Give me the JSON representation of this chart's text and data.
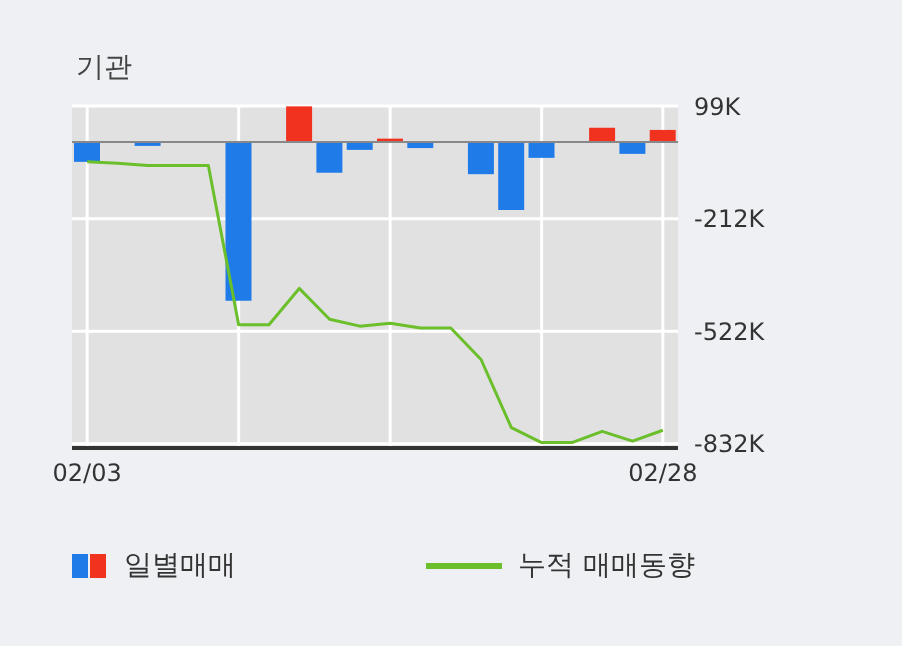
{
  "chart_data": {
    "type": "bar",
    "title": "기관",
    "categories": [
      "02/03",
      null,
      null,
      null,
      null,
      null,
      null,
      null,
      null,
      null,
      null,
      null,
      null,
      null,
      null,
      null,
      null,
      null,
      null,
      "02/28"
    ],
    "series": [
      {
        "name": "일별매매",
        "colors": [
          "#1e7be8",
          "#1e7be8",
          "#1e7be8",
          "#1e7be8",
          "#1e7be8",
          "#1e7be8",
          "#1e7be8",
          "#f0321e",
          "#1e7be8",
          "#1e7be8",
          "#f0321e",
          "#1e7be8",
          "#1e7be8",
          "#1e7be8",
          "#1e7be8",
          "#1e7be8",
          "#1e7be8",
          "#f0321e",
          "#1e7be8",
          "#f0321e"
        ],
        "values": [
          -55000,
          0,
          -11000,
          0,
          0,
          -438000,
          0,
          98000,
          -85000,
          -22000,
          9000,
          -17000,
          0,
          -89000,
          -188000,
          -44000,
          0,
          39000,
          -33000,
          33000
        ]
      },
      {
        "name": "누적 매매동향",
        "type": "line",
        "color": "#6abf2a",
        "values": [
          -55000,
          -59000,
          -65000,
          -65000,
          -65000,
          -504000,
          -504000,
          -404000,
          -489000,
          -508000,
          -500000,
          -513000,
          -513000,
          -600000,
          -788000,
          -829000,
          -829000,
          -798000,
          -825000,
          -795000
        ]
      }
    ],
    "ylim": [
      -844000,
      99000
    ],
    "yticks": [
      {
        "value": 99000,
        "label": "99K"
      },
      {
        "value": -212000,
        "label": "-212K"
      },
      {
        "value": -522000,
        "label": "-522K"
      },
      {
        "value": -832000,
        "label": "-832K"
      }
    ],
    "ref_lines": [
      {
        "axis": "y",
        "value": 0,
        "color": "#888888"
      }
    ],
    "grid": true,
    "legend": "bottom",
    "marker": "none"
  }
}
